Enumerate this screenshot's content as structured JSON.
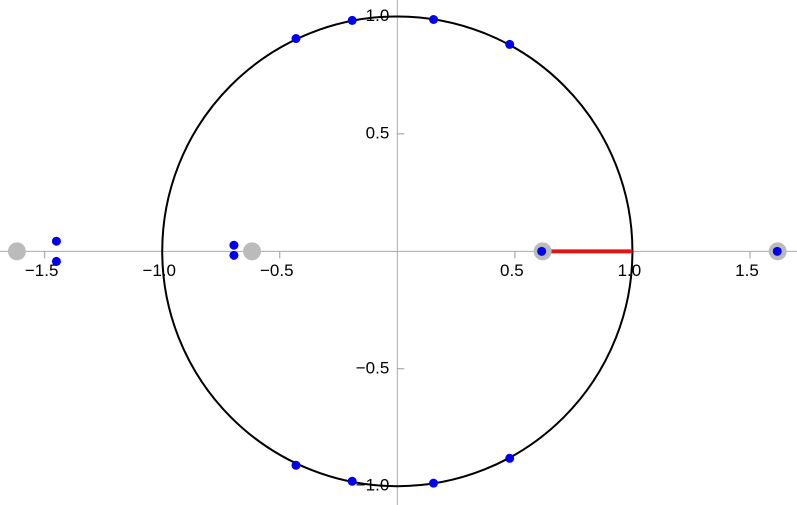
{
  "chart_data": {
    "type": "scatter",
    "xlim": [
      -1.69,
      1.7
    ],
    "ylim": [
      -1.08,
      1.07
    ],
    "xticks": [
      {
        "value": -1.5,
        "label": "−1.5"
      },
      {
        "value": -1,
        "label": "−1.0"
      },
      {
        "value": -0.5,
        "label": "−0.5"
      },
      0.5,
      {
        "value": 1,
        "label": "1.0"
      },
      1.5
    ],
    "yticks": [
      {
        "value": -1,
        "label": "−1.0"
      },
      {
        "value": -0.5,
        "label": "−0.5"
      },
      0.5,
      {
        "value": 1,
        "label": "1.0"
      }
    ],
    "circle": {
      "center": [
        0,
        0
      ],
      "radius": 1,
      "color": "#000000"
    },
    "segment": {
      "x": [
        0.618,
        1
      ],
      "y": [
        0,
        0
      ],
      "color": "#e01515"
    },
    "series": [
      {
        "color": "#bbbbbb",
        "size": 9,
        "x": [
          -1.618,
          -0.618,
          0.618,
          1.618
        ],
        "values": [
          0,
          0,
          0,
          0
        ]
      },
      {
        "color": "#0000ee",
        "size": 4.5,
        "x": [
          -0.431,
          -0.192,
          0.154,
          0.478,
          -0.431,
          -0.192,
          0.154,
          0.478,
          -1.45,
          -1.45,
          -0.695,
          -0.695,
          0.614,
          1.616
        ],
        "values": [
          0.906,
          0.983,
          0.987,
          0.881,
          -0.911,
          -0.979,
          -0.987,
          -0.881,
          0.043,
          -0.043,
          0.026,
          -0.017,
          0,
          0
        ]
      }
    ]
  }
}
